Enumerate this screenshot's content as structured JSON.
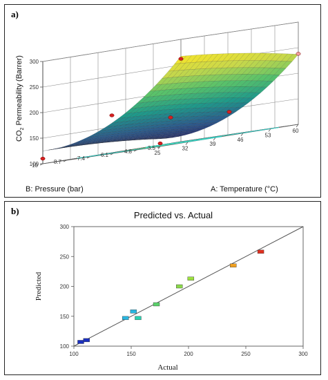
{
  "panel_a": {
    "label": "a)"
  },
  "panel_b": {
    "label": "b)"
  },
  "chart_data": [
    {
      "type": "surface3d",
      "zlabel": "CO2 Permeability (Barrer)",
      "zlabel_main": "CO",
      "zlabel_sub": "2",
      "zlabel_rest": " Permeability (Barrer)",
      "xlabel": "A: Temperature (°C)",
      "ylabel": "B: Pressure (bar)",
      "x_ticks": [
        "25",
        "32",
        "39",
        "46",
        "53",
        "60"
      ],
      "y_ticks": [
        "3.5",
        "4.8",
        "6.1",
        "7.4",
        "8.7",
        "10"
      ],
      "z_ticks": [
        "100",
        "150",
        "200",
        "250",
        "300"
      ],
      "xlim": [
        25,
        60
      ],
      "ylim": [
        3.5,
        10
      ],
      "zlim": [
        100,
        300
      ],
      "colormap": [
        "#2b1a63",
        "#2c5d8f",
        "#1f9a8a",
        "#59c26a",
        "#c9d84a",
        "#fde725"
      ],
      "floor_color": "#ffff00",
      "contour_color": "#2fd0c8",
      "design_point_color": "#d42020",
      "design_points": [
        {
          "temperature": 25,
          "pressure": 10,
          "permeability": 110
        },
        {
          "temperature": 25,
          "pressure": 3.5,
          "permeability": 106
        },
        {
          "temperature": 60,
          "pressure": 10,
          "permeability": 262
        },
        {
          "temperature": 60,
          "pressure": 3.5,
          "permeability": 238
        },
        {
          "temperature": 42.5,
          "pressure": 6.75,
          "permeability": 152
        },
        {
          "temperature": 42.5,
          "pressure": 10,
          "permeability": 173
        },
        {
          "temperature": 42.5,
          "pressure": 3.5,
          "permeability": 146
        }
      ]
    },
    {
      "type": "scatter",
      "title": "Predicted vs. Actual",
      "xlabel": "Actual",
      "ylabel": "Predicted",
      "xlim": [
        100,
        300
      ],
      "ylim": [
        100,
        300
      ],
      "x_ticks": [
        "100",
        "150",
        "200",
        "250",
        "300"
      ],
      "y_ticks": [
        "100",
        "150",
        "200",
        "250",
        "300"
      ],
      "reference_line": [
        [
          100,
          100
        ],
        [
          300,
          300
        ]
      ],
      "points": [
        {
          "x": 106,
          "y": 107,
          "color": "#1a2fbf"
        },
        {
          "x": 111,
          "y": 110,
          "color": "#1a2fbf"
        },
        {
          "x": 145,
          "y": 147,
          "color": "#29b6e0"
        },
        {
          "x": 152,
          "y": 158,
          "color": "#29b6e0"
        },
        {
          "x": 156,
          "y": 147,
          "color": "#2ad2b0"
        },
        {
          "x": 172,
          "y": 170,
          "color": "#5ad06a"
        },
        {
          "x": 192,
          "y": 200,
          "color": "#8ad84a"
        },
        {
          "x": 202,
          "y": 213,
          "color": "#9ce040"
        },
        {
          "x": 239,
          "y": 235,
          "color": "#f0a020"
        },
        {
          "x": 263,
          "y": 258,
          "color": "#e03020"
        }
      ]
    }
  ]
}
